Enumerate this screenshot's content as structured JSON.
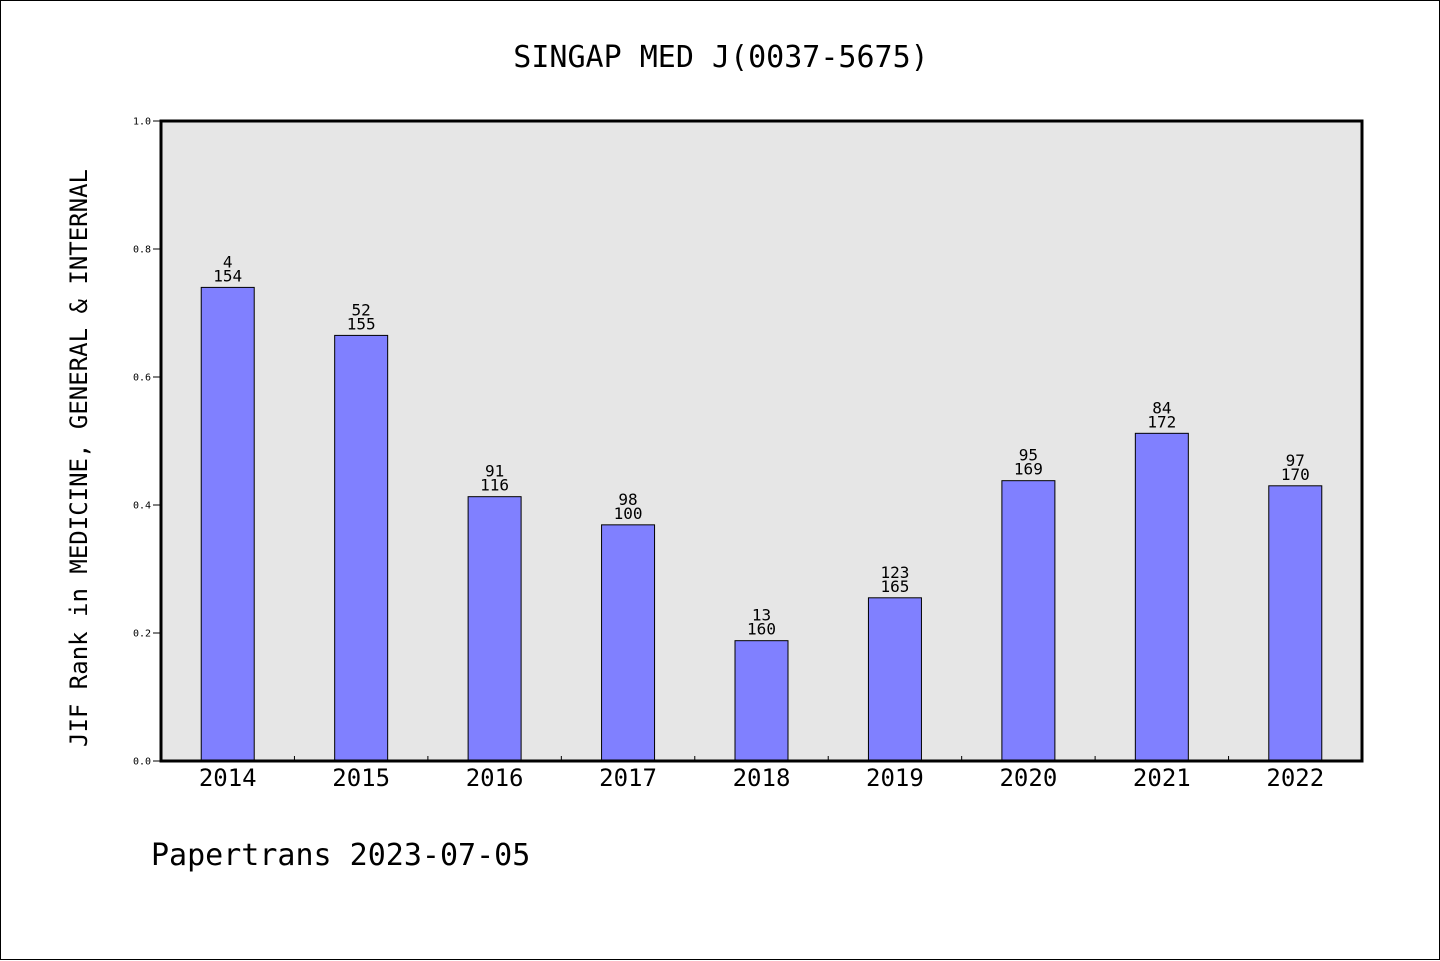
{
  "chart_data": {
    "type": "bar",
    "title": "SINGAP MED J(0037-5675)",
    "xlabel": "",
    "ylabel": "JIF Rank in MEDICINE, GENERAL & INTERNAL",
    "ylim": [
      0,
      1.0
    ],
    "yticks": [
      "0.0",
      "0.2",
      "0.4",
      "0.6",
      "0.8",
      "1.0"
    ],
    "categories": [
      "2014",
      "2015",
      "2016",
      "2017",
      "2018",
      "2019",
      "2020",
      "2021",
      "2022"
    ],
    "values": [
      0.74,
      0.665,
      0.413,
      0.369,
      0.188,
      0.255,
      0.438,
      0.512,
      0.43
    ],
    "rank_labels": [
      "4",
      "52",
      "91",
      "98",
      "13",
      "123",
      "95",
      "84",
      "97"
    ],
    "total_labels": [
      "154",
      "155",
      "116",
      "100",
      "160",
      "165",
      "169",
      "172",
      "170"
    ],
    "grid": false,
    "colors": {
      "bar": "#8080ff",
      "plot_background": "#e6e6e6",
      "axes": "#000000"
    }
  },
  "footer": "Papertrans 2023-07-05"
}
